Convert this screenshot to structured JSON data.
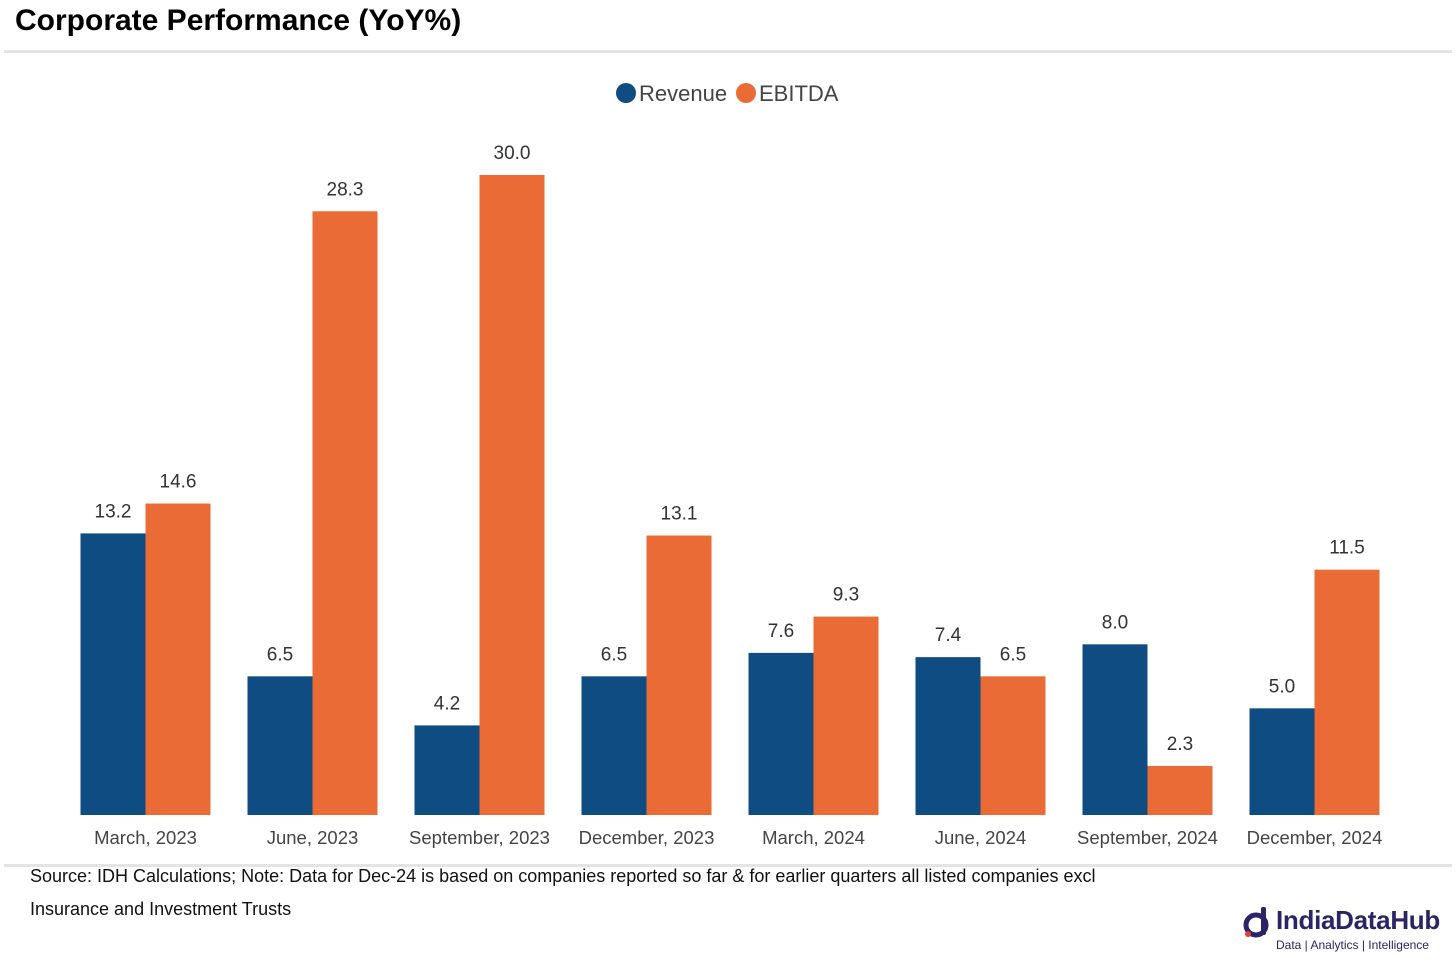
{
  "page": {
    "title": "Corporate Performance (YoY%)",
    "source_lines": [
      "Source: IDH Calculations; Note: Data for Dec-24 is based on companies reported so far & for earlier quarters all listed companies excl",
      "Insurance and Investment Trusts"
    ],
    "brand": {
      "name": "IndiaDataHub",
      "tagline": "Data | Analytics | Intelligence",
      "icon": "indiadatahub-logo-icon"
    }
  },
  "chart_data": {
    "type": "bar",
    "categories": [
      "March, 2023",
      "June, 2023",
      "September, 2023",
      "December, 2023",
      "March, 2024",
      "June, 2024",
      "September, 2024",
      "December, 2024"
    ],
    "series": [
      {
        "name": "Revenue",
        "color": "#0f4c81",
        "values": [
          13.2,
          6.5,
          4.2,
          6.5,
          7.6,
          7.4,
          8.0,
          5.0
        ]
      },
      {
        "name": "EBITDA",
        "color": "#ea6b35",
        "values": [
          14.6,
          28.3,
          30.0,
          13.1,
          9.3,
          6.5,
          2.3,
          11.5
        ]
      }
    ],
    "ylim": [
      0,
      30
    ],
    "grid": false,
    "legend": "top-center",
    "data_labels": true,
    "value_format": "0.0"
  }
}
